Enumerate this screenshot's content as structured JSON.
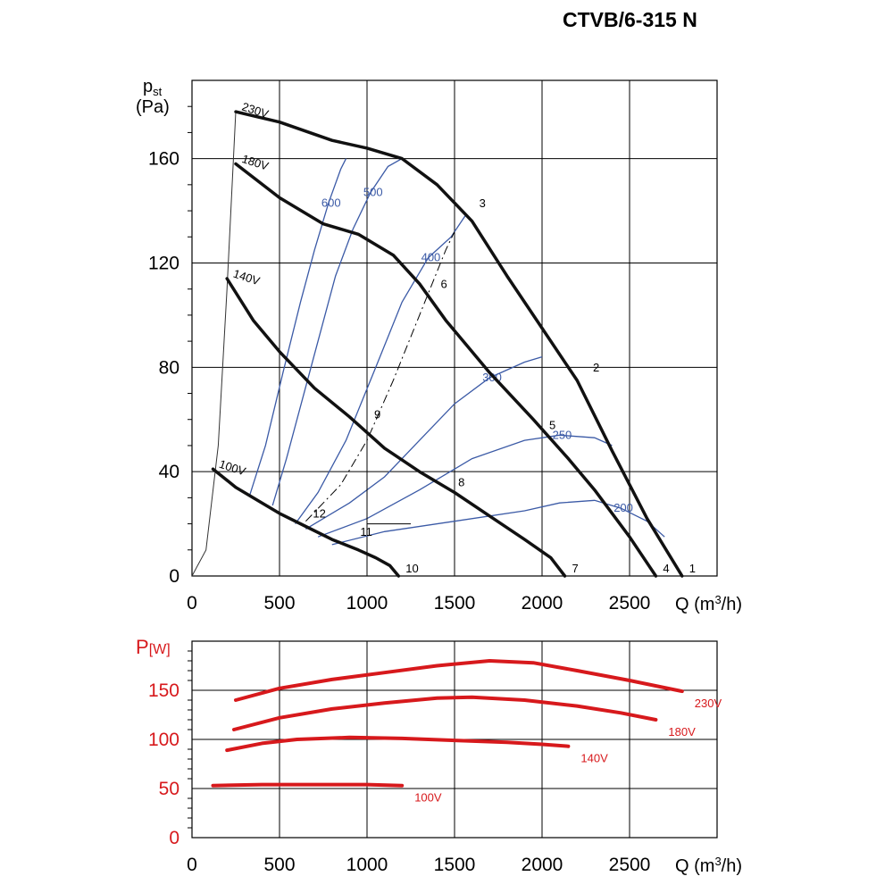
{
  "title": "CTVB/6-315 N",
  "chart_data": [
    {
      "type": "line",
      "name": "pressure",
      "ylabel_main": "p",
      "ylabel_sub": "st",
      "yunit": "(Pa)",
      "xlabel": "Q (m",
      "xlabel_sup": "3",
      "xlabel_end": "/h)",
      "xlim": [
        0,
        3000
      ],
      "ylim": [
        0,
        190
      ],
      "xticks": [
        0,
        500,
        1000,
        1500,
        2000,
        2500
      ],
      "yticks": [
        0,
        40,
        80,
        120,
        160
      ],
      "series": [
        {
          "name": "230V",
          "points": [
            [
              250,
              178
            ],
            [
              500,
              174
            ],
            [
              800,
              167
            ],
            [
              1000,
              164
            ],
            [
              1200,
              160
            ],
            [
              1400,
              150
            ],
            [
              1600,
              136
            ],
            [
              1800,
              115
            ],
            [
              2000,
              95
            ],
            [
              2200,
              75
            ],
            [
              2400,
              48
            ],
            [
              2600,
              22
            ],
            [
              2800,
              0
            ]
          ]
        },
        {
          "name": "180V",
          "points": [
            [
              250,
              158
            ],
            [
              500,
              145
            ],
            [
              750,
              135
            ],
            [
              950,
              131
            ],
            [
              1150,
              123
            ],
            [
              1300,
              112
            ],
            [
              1450,
              98
            ],
            [
              1700,
              78
            ],
            [
              1950,
              60
            ],
            [
              2150,
              45
            ],
            [
              2300,
              33
            ],
            [
              2500,
              15
            ],
            [
              2650,
              0
            ]
          ]
        },
        {
          "name": "140V",
          "points": [
            [
              200,
              114
            ],
            [
              350,
              98
            ],
            [
              500,
              86
            ],
            [
              700,
              72
            ],
            [
              900,
              61
            ],
            [
              1100,
              49
            ],
            [
              1300,
              40
            ],
            [
              1500,
              32
            ],
            [
              1700,
              23
            ],
            [
              1900,
              14
            ],
            [
              2050,
              7
            ],
            [
              2130,
              0
            ]
          ]
        },
        {
          "name": "100V",
          "points": [
            [
              120,
              41
            ],
            [
              250,
              34
            ],
            [
              400,
              28
            ],
            [
              500,
              24
            ],
            [
              650,
              19
            ],
            [
              800,
              14
            ],
            [
              950,
              10
            ],
            [
              1050,
              7
            ],
            [
              1130,
              4
            ],
            [
              1180,
              0
            ]
          ]
        }
      ],
      "efficiency_curves": [
        {
          "name": "600",
          "points": [
            [
              330,
              31
            ],
            [
              420,
              50
            ],
            [
              520,
              78
            ],
            [
              620,
              105
            ],
            [
              700,
              125
            ],
            [
              780,
              143
            ],
            [
              850,
              156
            ],
            [
              880,
              160
            ]
          ]
        },
        {
          "name": "500",
          "points": [
            [
              460,
              27
            ],
            [
              540,
              45
            ],
            [
              620,
              65
            ],
            [
              720,
              90
            ],
            [
              820,
              115
            ],
            [
              920,
              133
            ],
            [
              1020,
              147
            ],
            [
              1120,
              157
            ],
            [
              1200,
              160
            ]
          ]
        },
        {
          "name": "400",
          "points": [
            [
              590,
              20
            ],
            [
              720,
              32
            ],
            [
              880,
              52
            ],
            [
              1050,
              80
            ],
            [
              1200,
              105
            ],
            [
              1350,
              122
            ],
            [
              1480,
              130
            ],
            [
              1560,
              138
            ]
          ]
        },
        {
          "name": "300",
          "points": [
            [
              650,
              18
            ],
            [
              900,
              28
            ],
            [
              1100,
              38
            ],
            [
              1300,
              52
            ],
            [
              1500,
              66
            ],
            [
              1700,
              76
            ],
            [
              1900,
              82
            ],
            [
              2000,
              84
            ]
          ]
        },
        {
          "name": "250",
          "points": [
            [
              720,
              15
            ],
            [
              1000,
              22
            ],
            [
              1300,
              33
            ],
            [
              1600,
              45
            ],
            [
              1900,
              52
            ],
            [
              2100,
              54
            ],
            [
              2300,
              53
            ],
            [
              2400,
              50
            ]
          ]
        },
        {
          "name": "200",
          "points": [
            [
              800,
              12
            ],
            [
              1100,
              17
            ],
            [
              1500,
              21
            ],
            [
              1900,
              25
            ],
            [
              2100,
              28
            ],
            [
              2300,
              29
            ],
            [
              2450,
              26
            ],
            [
              2600,
              21
            ],
            [
              2700,
              15
            ]
          ]
        }
      ],
      "system_line_points": [
        [
          650,
          21
        ],
        [
          850,
          35
        ],
        [
          1000,
          52
        ],
        [
          1150,
          75
        ],
        [
          1300,
          100
        ],
        [
          1450,
          125
        ],
        [
          1500,
          132
        ]
      ],
      "system_axis": [
        [
          1000,
          56
        ],
        [
          1000,
          20
        ],
        [
          1250,
          20
        ]
      ],
      "motor_envelope": [
        [
          0,
          0
        ],
        [
          80,
          10
        ],
        [
          150,
          50
        ],
        [
          200,
          110
        ],
        [
          250,
          178
        ]
      ],
      "operating_points": [
        {
          "label": "1",
          "x": 2800,
          "y": 0
        },
        {
          "label": "2",
          "x": 2250,
          "y": 77
        },
        {
          "label": "3",
          "x": 1600,
          "y": 140
        },
        {
          "label": "4",
          "x": 2650,
          "y": 0
        },
        {
          "label": "5",
          "x": 2000,
          "y": 55
        },
        {
          "label": "6",
          "x": 1380,
          "y": 109
        },
        {
          "label": "7",
          "x": 2130,
          "y": 0
        },
        {
          "label": "8",
          "x": 1480,
          "y": 33
        },
        {
          "label": "9",
          "x": 1000,
          "y": 59
        },
        {
          "label": "10",
          "x": 1180,
          "y": 0
        },
        {
          "label": "11",
          "x": 920,
          "y": 14
        },
        {
          "label": "12",
          "x": 650,
          "y": 21
        }
      ]
    },
    {
      "type": "line",
      "name": "power",
      "ylabel": "P",
      "yunit": "[W]",
      "xlabel": "Q (m",
      "xlabel_sup": "3",
      "xlabel_end": "/h)",
      "xlim": [
        0,
        3000
      ],
      "ylim": [
        0,
        200
      ],
      "xticks": [
        0,
        500,
        1000,
        1500,
        2000,
        2500
      ],
      "yticks": [
        0,
        50,
        100,
        150
      ],
      "series": [
        {
          "name": "230V",
          "points": [
            [
              250,
              140
            ],
            [
              500,
              152
            ],
            [
              800,
              161
            ],
            [
              1100,
              168
            ],
            [
              1400,
              175
            ],
            [
              1700,
              180
            ],
            [
              1950,
              178
            ],
            [
              2200,
              170
            ],
            [
              2500,
              160
            ],
            [
              2800,
              149
            ]
          ]
        },
        {
          "name": "180V",
          "points": [
            [
              240,
              110
            ],
            [
              500,
              122
            ],
            [
              800,
              131
            ],
            [
              1100,
              137
            ],
            [
              1400,
              142
            ],
            [
              1600,
              143
            ],
            [
              1900,
              140
            ],
            [
              2200,
              134
            ],
            [
              2450,
              127
            ],
            [
              2650,
              120
            ]
          ]
        },
        {
          "name": "140V",
          "points": [
            [
              200,
              89
            ],
            [
              400,
              96
            ],
            [
              600,
              100
            ],
            [
              900,
              102
            ],
            [
              1200,
              101
            ],
            [
              1500,
              99
            ],
            [
              1800,
              97
            ],
            [
              2000,
              95
            ],
            [
              2150,
              93
            ]
          ]
        },
        {
          "name": "100V",
          "points": [
            [
              120,
              53
            ],
            [
              400,
              54
            ],
            [
              700,
              54
            ],
            [
              1000,
              54
            ],
            [
              1200,
              53
            ]
          ]
        }
      ]
    }
  ],
  "colors": {
    "curve": "#111111",
    "efficiency": "#3b5aa6",
    "power": "#d7191c"
  }
}
